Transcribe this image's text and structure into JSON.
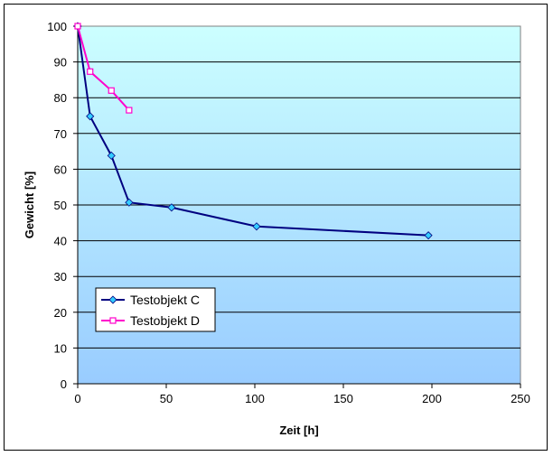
{
  "chart_data": {
    "type": "line",
    "title": "",
    "xlabel": "Zeit [h]",
    "ylabel": "Gewicht [%]",
    "xlim": [
      0,
      250
    ],
    "ylim": [
      0,
      100
    ],
    "xticks": [
      "0",
      "50",
      "100",
      "150",
      "200",
      "250"
    ],
    "yticks": [
      "0",
      "10",
      "20",
      "30",
      "40",
      "50",
      "60",
      "70",
      "80",
      "90",
      "100"
    ],
    "grid": "horizontal",
    "legend_position": "bottom-left",
    "background_gradient": [
      "#ccffff",
      "#99ccff"
    ],
    "series": [
      {
        "name": "Testobjekt C",
        "color": "#000080",
        "marker": "diamond",
        "marker_color": "#33ccff",
        "x": [
          0,
          7,
          19,
          29,
          53,
          101,
          198
        ],
        "y": [
          100,
          74.8,
          63.8,
          50.7,
          49.3,
          44,
          41.5
        ]
      },
      {
        "name": "Testobjekt D",
        "color": "#ff00cc",
        "marker": "square",
        "marker_color": "#ffffff",
        "x": [
          0,
          7,
          19,
          29
        ],
        "y": [
          100,
          87.3,
          82,
          76.5
        ]
      }
    ]
  }
}
